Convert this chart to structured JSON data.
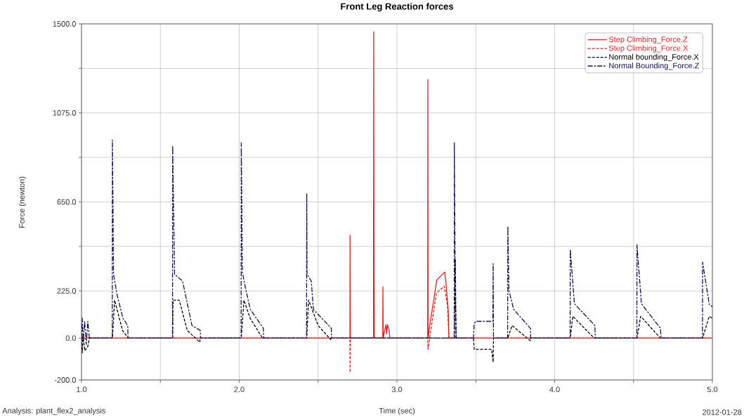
{
  "chart_data": {
    "type": "line",
    "title": "Front Leg Reaction forces",
    "xlabel": "Time (sec)",
    "ylabel": "Force (newton)",
    "annotations": [
      "Analysis:  plant_flex2_analysis",
      "2012-01-28"
    ],
    "xlim": [
      1.0,
      5.0
    ],
    "ylim": [
      -200,
      1500
    ],
    "xticks": [
      {
        "value": 1.0,
        "label": "1.0"
      },
      {
        "value": 1.5,
        "label": null
      },
      {
        "value": 2.0,
        "label": "2.0"
      },
      {
        "value": 2.5,
        "label": null
      },
      {
        "value": 3.0,
        "label": "3.0"
      },
      {
        "value": 3.5,
        "label": null
      },
      {
        "value": 4.0,
        "label": "4.0"
      },
      {
        "value": 4.5,
        "label": null
      },
      {
        "value": 5.0,
        "label": "5.0"
      }
    ],
    "yticks": [
      {
        "value": -200,
        "label": "-200.0"
      },
      {
        "value": 0,
        "label": "0.0"
      },
      {
        "value": 225,
        "label": "225.0"
      },
      {
        "value": 437.5,
        "label": null
      },
      {
        "value": 650,
        "label": "650.0"
      },
      {
        "value": 862.5,
        "label": null
      },
      {
        "value": 1075,
        "label": "1075.0"
      },
      {
        "value": 1287.5,
        "label": null
      },
      {
        "value": 1500,
        "label": "1500.0"
      }
    ],
    "grid": true,
    "legend": "top right",
    "marker": "none",
    "series": [
      {
        "name": "Step Climbing_Force.Z",
        "color": "#d42020",
        "line_style": "solid",
        "x": [
          1.0,
          2.702,
          2.703,
          2.705,
          2.852,
          2.853,
          2.856,
          2.91,
          2.911,
          2.913,
          2.93,
          2.935,
          2.94,
          2.95,
          2.955,
          3.195,
          3.196,
          3.198,
          3.208,
          3.253,
          3.303,
          3.31,
          3.325,
          3.33,
          5.0
        ],
        "values": [
          0,
          0,
          490,
          0,
          0,
          1462,
          0,
          0,
          245,
          0,
          64,
          20,
          64,
          40,
          0,
          0,
          1234,
          0,
          60,
          278,
          315,
          272,
          137,
          0,
          0
        ]
      },
      {
        "name": "Step Climbing_Force.X",
        "color": "#d42020",
        "line_style": "dashed",
        "x": [
          1.0,
          2.702,
          2.703,
          2.705,
          2.852,
          2.853,
          2.856,
          3.195,
          3.197,
          3.25,
          3.3,
          3.32,
          3.33,
          5.0
        ],
        "values": [
          0,
          0,
          -164,
          0,
          0,
          647,
          0,
          0,
          -54,
          215,
          248,
          161,
          0,
          0
        ]
      },
      {
        "name": "Normal bounding_Force.X",
        "color": "#000000",
        "line_style": "dashed",
        "x": [
          1.0,
          1.005,
          1.01,
          1.02,
          1.03,
          1.04,
          1.05,
          1.196,
          1.21,
          1.26,
          1.295,
          1.297,
          1.578,
          1.58,
          1.62,
          1.67,
          1.75,
          1.752,
          2.013,
          2.03,
          2.07,
          2.15,
          2.152,
          2.428,
          2.44,
          2.5,
          2.58,
          2.582,
          3.364,
          3.37,
          3.375,
          3.485,
          3.49,
          3.6,
          3.61,
          3.612,
          3.703,
          3.73,
          3.846,
          3.848,
          4.099,
          4.115,
          4.25,
          4.522,
          4.545,
          4.67,
          4.938,
          4.98,
          5.0
        ],
        "values": [
          0,
          -70,
          20,
          -60,
          -50,
          -40,
          0,
          0,
          181,
          37,
          0,
          0,
          0,
          181,
          181,
          37,
          -20,
          0,
          0,
          181,
          94,
          -3,
          0,
          0,
          181,
          60,
          -7,
          0,
          0,
          380,
          0,
          0,
          -54,
          -54,
          -114,
          0,
          0,
          60,
          -13,
          0,
          0,
          104,
          0,
          0,
          104,
          0,
          0,
          104,
          94
        ]
      },
      {
        "name": "Normal Bounding_Force.Z",
        "color": "#10104f",
        "line_style": "dashdot",
        "x": [
          1.0,
          1.005,
          1.01,
          1.02,
          1.03,
          1.04,
          1.05,
          1.195,
          1.196,
          1.203,
          1.226,
          1.263,
          1.293,
          1.295,
          1.577,
          1.578,
          1.59,
          1.641,
          1.7,
          1.753,
          1.755,
          2.012,
          2.013,
          2.02,
          2.04,
          2.07,
          2.153,
          2.155,
          2.427,
          2.428,
          2.43,
          2.457,
          2.47,
          2.584,
          2.585,
          3.363,
          3.364,
          3.37,
          3.375,
          3.485,
          3.49,
          3.5,
          3.608,
          3.61,
          3.612,
          3.702,
          3.703,
          3.71,
          3.74,
          3.846,
          3.848,
          4.098,
          4.099,
          4.125,
          4.255,
          4.257,
          4.521,
          4.522,
          4.55,
          4.67,
          4.675,
          4.937,
          4.938,
          4.98,
          5.0
        ],
        "values": [
          0,
          95,
          -20,
          80,
          -30,
          80,
          0,
          0,
          945,
          305,
          205,
          94,
          60,
          0,
          0,
          919,
          305,
          272,
          60,
          37,
          0,
          0,
          932,
          315,
          238,
          137,
          47,
          0,
          0,
          691,
          305,
          272,
          137,
          47,
          0,
          0,
          932,
          200,
          0,
          0,
          70,
          80,
          80,
          355,
          0,
          0,
          533,
          228,
          137,
          47,
          0,
          0,
          423,
          164,
          60,
          0,
          0,
          446,
          164,
          47,
          0,
          0,
          362,
          161,
          150
        ]
      }
    ]
  }
}
